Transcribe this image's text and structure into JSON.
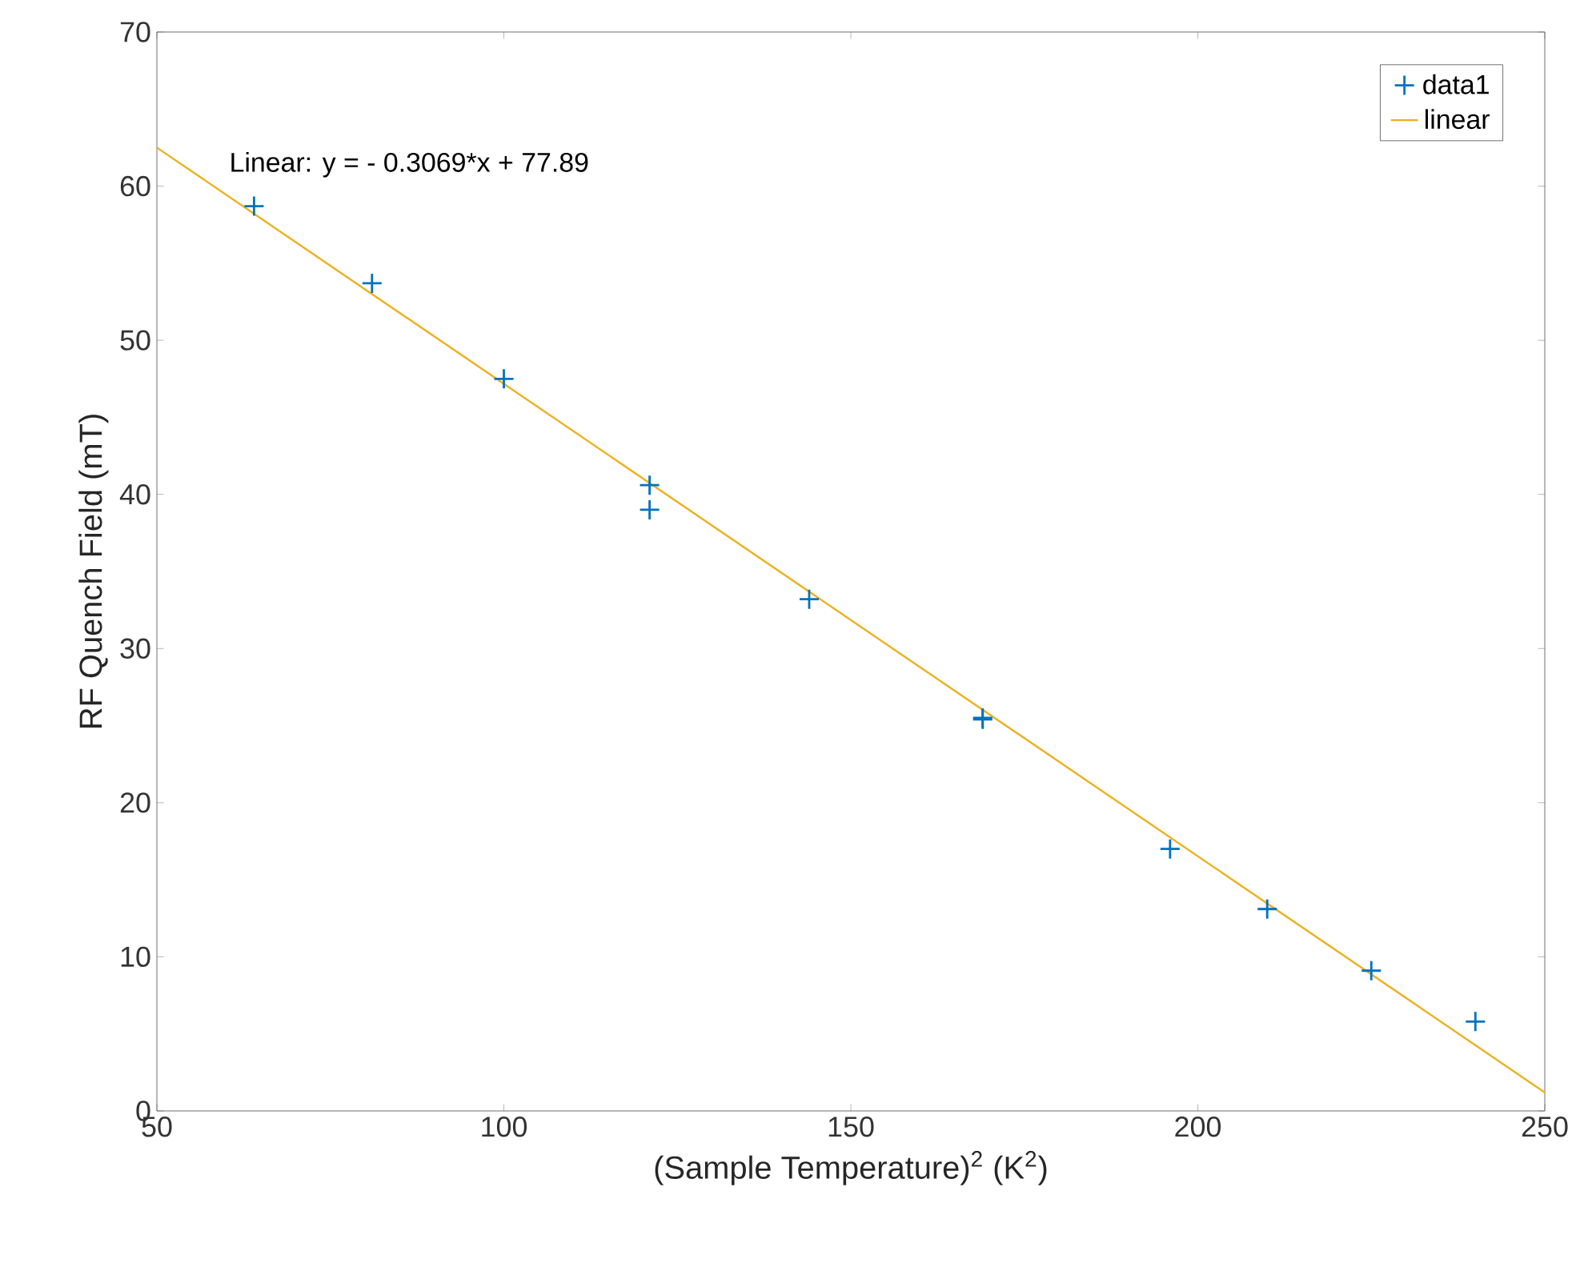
{
  "chart_data": {
    "type": "scatter",
    "xlabel": "(Sample Temperature)$^{2}$ (K$^{2}$)",
    "ylabel": "RF Quench Field (mT)",
    "xlim": [
      50,
      250
    ],
    "xticks": [
      50,
      100,
      150,
      200,
      250
    ],
    "ylim": [
      0,
      70
    ],
    "yticks": [
      0,
      10,
      20,
      30,
      40,
      50,
      60,
      70
    ],
    "grid": false,
    "legend": "top right",
    "annotations": [
      "Linear:  y = - 0.3069*x + 77.89"
    ],
    "series": [
      {
        "name": "data1",
        "type": "scatter",
        "color": "#0072bd",
        "marker": "cross",
        "x": [
          64,
          81,
          100,
          121,
          121,
          144,
          169,
          169,
          196,
          210,
          225,
          240
        ],
        "values": [
          58.7,
          53.7,
          47.5,
          40.6,
          39.0,
          33.2,
          25.5,
          25.4,
          17.0,
          13.1,
          9.1,
          5.8
        ]
      },
      {
        "name": "linear",
        "type": "line",
        "color": "#edb120",
        "marker": "none",
        "line_style": "solid",
        "x": [
          50,
          250
        ],
        "values": [
          62.5,
          1.2
        ]
      }
    ]
  }
}
